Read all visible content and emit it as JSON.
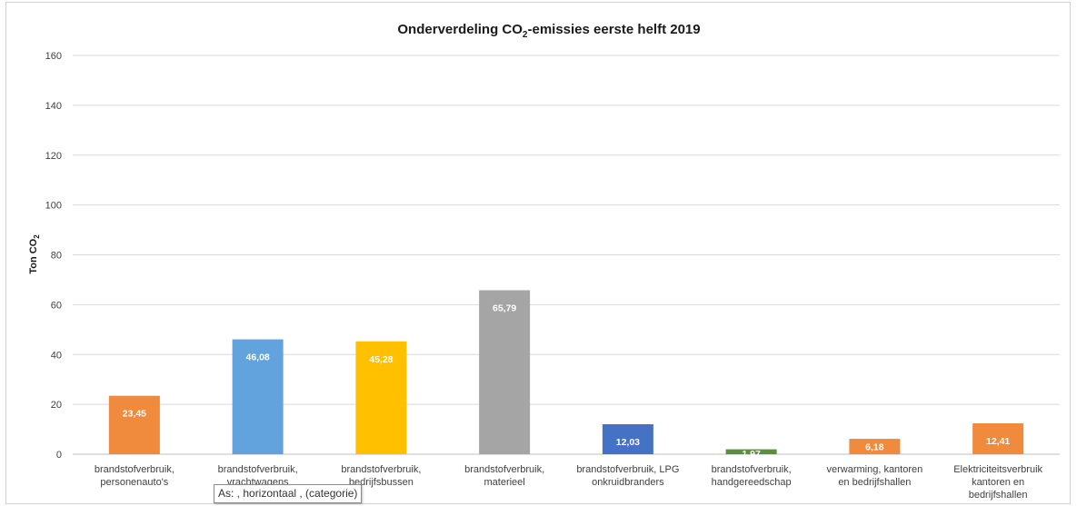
{
  "chart_data": {
    "type": "bar",
    "title": "Onderverdeling CO₂-emissies eerste helft 2019",
    "ylabel": "Ton CO₂",
    "xlabel": "",
    "ylim": [
      0,
      160
    ],
    "yticks": [
      0,
      20,
      40,
      60,
      80,
      100,
      120,
      140,
      160
    ],
    "grid": true,
    "legend": "none",
    "categories": [
      [
        "brandstofverbruik,",
        "personenauto's"
      ],
      [
        "brandstofverbruik,",
        "vrachtwagens"
      ],
      [
        "brandstofverbruik,",
        "bedrijfsbussen"
      ],
      [
        "brandstofverbruik,",
        "materieel"
      ],
      [
        "brandstofverbruik, LPG",
        "onkruidbranders"
      ],
      [
        "brandstofverbruik,",
        "handgereedschap"
      ],
      [
        "verwarming, kantoren",
        "en bedrijfshallen"
      ],
      [
        "Elektriciteitsverbruik",
        "kantoren en",
        "bedrijfshallen"
      ]
    ],
    "values": [
      23.45,
      46.08,
      45.28,
      65.79,
      12.03,
      1.97,
      6.18,
      12.41
    ],
    "value_labels": [
      "23,45",
      "46,08",
      "45,28",
      "65,79",
      "12,03",
      "1,97",
      "6,18",
      "12,41"
    ],
    "colors": [
      "#f08a3c",
      "#62a3dd",
      "#ffc000",
      "#a5a5a5",
      "#4472c4",
      "#5b8f3c",
      "#f08a3c",
      "#f08a3c"
    ]
  },
  "tooltip": {
    "text": "As: , horizontaal , (categorie)"
  }
}
